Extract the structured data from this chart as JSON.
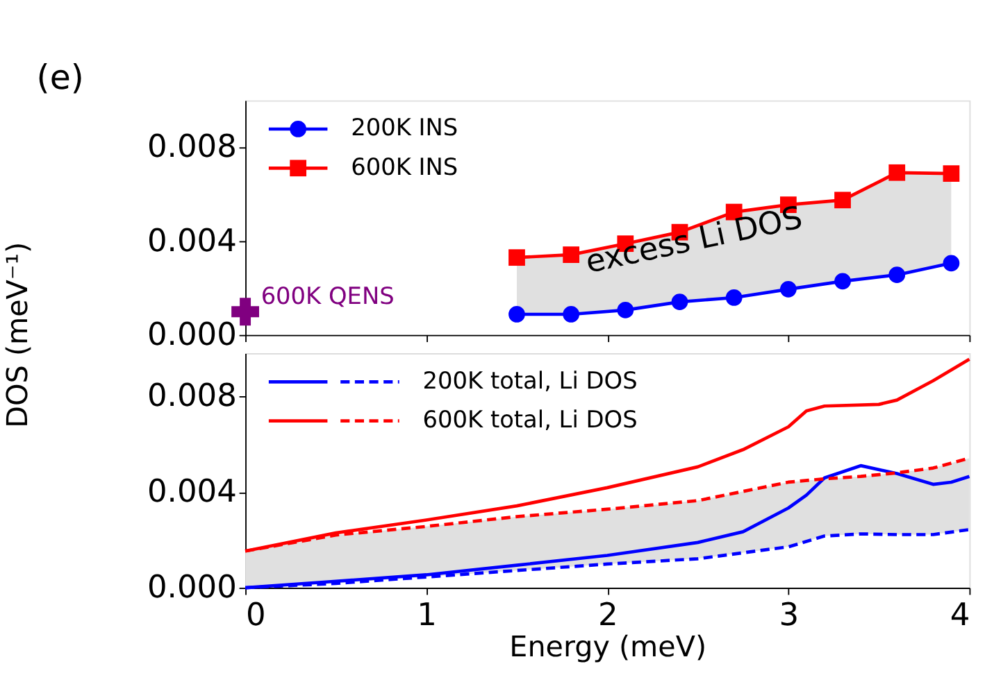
{
  "chart_data": [
    {
      "type": "line",
      "ylabel": "DOS (meV⁻¹)",
      "annotations": [
        "(e)",
        "excess Li DOS"
      ],
      "xlim": [
        0,
        4
      ],
      "ylim": [
        0,
        0.01
      ],
      "xticks": [
        0,
        1,
        2,
        3,
        4
      ],
      "yticks": [
        {
          "value": 0,
          "label": "0.000"
        },
        {
          "value": 0.004,
          "label": "0.004"
        },
        {
          "value": 0.008,
          "label": "0.008"
        }
      ],
      "tick_labels": "y",
      "grid": false,
      "legend": "top left",
      "series": [
        {
          "name": "200K INS",
          "color": "#0000ff",
          "marker": "circle",
          "line_style": "solid",
          "x": [
            1.5,
            1.8,
            2.1,
            2.4,
            2.7,
            3.0,
            3.3,
            3.6,
            3.9
          ],
          "values": [
            0.00088,
            0.00088,
            0.00106,
            0.00141,
            0.00159,
            0.00195,
            0.00229,
            0.00256,
            0.00306
          ],
          "lower": [
            0.00088,
            0.00088,
            0.00106,
            0.00141,
            0.00159,
            0.00195,
            0.00229,
            0.00256,
            0.00306
          ],
          "upper": [
            0.0033,
            0.00342,
            0.00389,
            0.00438,
            0.00524,
            0.00555,
            0.00575,
            0.00692,
            0.00688
          ]
        },
        {
          "name": "600K INS",
          "color": "#ff0000",
          "marker": "square",
          "line_style": "solid",
          "x": [
            1.5,
            1.8,
            2.1,
            2.4,
            2.7,
            3.0,
            3.3,
            3.6,
            3.9
          ],
          "values": [
            0.0033,
            0.00342,
            0.00389,
            0.00438,
            0.00524,
            0.00555,
            0.00575,
            0.00692,
            0.00688
          ]
        },
        {
          "name": "600K QENS",
          "type": "scatter",
          "color": "#800080",
          "marker": "cross",
          "x": [
            0
          ],
          "values": [
            0.00099
          ]
        }
      ]
    },
    {
      "type": "line",
      "xlabel": "Energy (meV)",
      "xlim": [
        0,
        4
      ],
      "ylim": [
        0,
        0.0098
      ],
      "xticks": [
        0,
        1,
        2,
        3,
        4
      ],
      "yticks": [
        {
          "value": 0,
          "label": "0.000"
        },
        {
          "value": 0.004,
          "label": "0.004"
        },
        {
          "value": 0.008,
          "label": "0.008"
        }
      ],
      "grid": false,
      "legend": "top left",
      "series": [
        {
          "name": "200K total, Li DOS",
          "color": "#0000ff",
          "line_style": "solid",
          "x": [
            0,
            0.5,
            1,
            1.5,
            2,
            2.5,
            2.75,
            3,
            3.1,
            3.2,
            3.4,
            3.6,
            3.8,
            3.9,
            4
          ],
          "values": [
            0,
            0.00027,
            0.00054,
            0.00094,
            0.00135,
            0.00189,
            0.00234,
            0.00333,
            0.00387,
            0.00459,
            0.0051,
            0.00477,
            0.00432,
            0.00441,
            0.00465
          ]
        },
        {
          "color": "#0000ff",
          "line_style": "dashed",
          "x": [
            0,
            0.5,
            1,
            1.5,
            2,
            2.5,
            3,
            3.2,
            3.4,
            3.6,
            3.8,
            4
          ],
          "values": [
            0,
            0.00018,
            0.00045,
            0.00072,
            0.00099,
            0.00121,
            0.00171,
            0.00216,
            0.00225,
            0.00222,
            0.00222,
            0.00243
          ],
          "lower": [
            0,
            0.00018,
            0.00045,
            0.00072,
            0.00099,
            0.00121,
            0.00171,
            0.00216,
            0.00225,
            0.00222,
            0.00222,
            0.00243
          ],
          "upper": [
            0.00153,
            0.0022,
            0.00256,
            0.00297,
            0.00328,
            0.00364,
            0.00441,
            0.00455,
            0.00465,
            0.0048,
            0.005,
            0.00541
          ]
        },
        {
          "name": "600K total, Li DOS",
          "color": "#ff0000",
          "line_style": "solid",
          "x": [
            0,
            0.5,
            1,
            1.5,
            2,
            2.5,
            2.75,
            3,
            3.1,
            3.2,
            3.5,
            3.6,
            3.8,
            4
          ],
          "values": [
            0.00153,
            0.00229,
            0.00283,
            0.00342,
            0.00418,
            0.00505,
            0.00577,
            0.00672,
            0.00739,
            0.00759,
            0.00766,
            0.00784,
            0.00865,
            0.00955
          ]
        },
        {
          "color": "#ff0000",
          "line_style": "dashed",
          "x": [
            0,
            0.5,
            1,
            1.5,
            2,
            2.5,
            3,
            3.2,
            3.4,
            3.6,
            3.8,
            4
          ],
          "values": [
            0.00153,
            0.0022,
            0.00256,
            0.00297,
            0.00328,
            0.00364,
            0.00441,
            0.00455,
            0.00465,
            0.0048,
            0.005,
            0.00541
          ]
        }
      ]
    }
  ]
}
